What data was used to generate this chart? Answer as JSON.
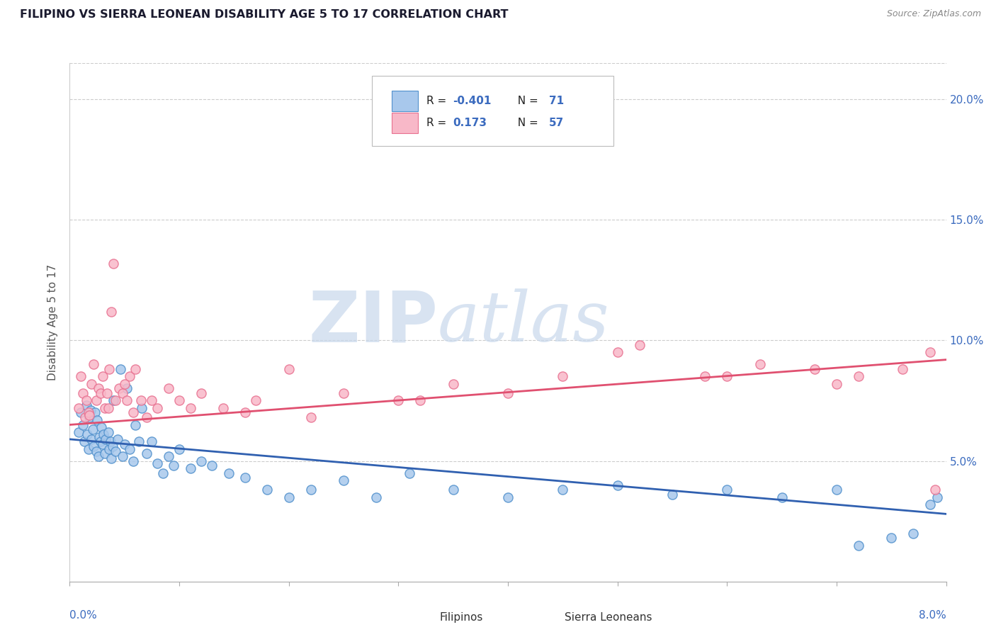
{
  "title": "FILIPINO VS SIERRA LEONEAN DISABILITY AGE 5 TO 17 CORRELATION CHART",
  "source": "Source: ZipAtlas.com",
  "ylabel": "Disability Age 5 to 17",
  "xlim": [
    0.0,
    8.0
  ],
  "ylim": [
    0.0,
    21.5
  ],
  "yticks": [
    0.0,
    5.0,
    10.0,
    15.0,
    20.0
  ],
  "ytick_labels": [
    "",
    "5.0%",
    "10.0%",
    "15.0%",
    "20.0%"
  ],
  "color_filipino_face": "#A8C8EC",
  "color_filipino_edge": "#5090CC",
  "color_sierraleonean_face": "#F8B8C8",
  "color_sierraleonean_edge": "#E87090",
  "color_line_filipino": "#3060B0",
  "color_line_sierraleonean": "#E05070",
  "axis_color": "#3B6BBF",
  "title_color": "#1A1A2E",
  "watermark_color": "#C8D8EC",
  "filipino_trend_x": [
    0.0,
    8.0
  ],
  "filipino_trend_y": [
    5.9,
    2.8
  ],
  "sl_trend_x": [
    0.0,
    8.0
  ],
  "sl_trend_y": [
    6.5,
    9.2
  ],
  "filipino_x": [
    0.08,
    0.1,
    0.12,
    0.13,
    0.15,
    0.16,
    0.17,
    0.18,
    0.19,
    0.2,
    0.21,
    0.22,
    0.23,
    0.24,
    0.25,
    0.26,
    0.27,
    0.28,
    0.29,
    0.3,
    0.31,
    0.32,
    0.33,
    0.35,
    0.36,
    0.37,
    0.38,
    0.39,
    0.4,
    0.42,
    0.44,
    0.46,
    0.48,
    0.5,
    0.52,
    0.55,
    0.58,
    0.6,
    0.63,
    0.66,
    0.7,
    0.75,
    0.8,
    0.85,
    0.9,
    0.95,
    1.0,
    1.1,
    1.2,
    1.3,
    1.45,
    1.6,
    1.8,
    2.0,
    2.2,
    2.5,
    2.8,
    3.1,
    3.5,
    4.0,
    4.5,
    5.0,
    5.5,
    6.0,
    6.5,
    7.0,
    7.2,
    7.5,
    7.7,
    7.85,
    7.92
  ],
  "filipino_y": [
    6.2,
    7.0,
    6.5,
    5.8,
    7.3,
    6.1,
    5.5,
    6.8,
    7.1,
    5.9,
    6.3,
    5.6,
    7.0,
    5.4,
    6.7,
    5.2,
    6.0,
    5.8,
    6.4,
    5.7,
    6.1,
    5.3,
    5.9,
    6.2,
    5.5,
    5.8,
    5.1,
    5.6,
    7.5,
    5.4,
    5.9,
    8.8,
    5.2,
    5.7,
    8.0,
    5.5,
    5.0,
    6.5,
    5.8,
    7.2,
    5.3,
    5.8,
    4.9,
    4.5,
    5.2,
    4.8,
    5.5,
    4.7,
    5.0,
    4.8,
    4.5,
    4.3,
    3.8,
    3.5,
    3.8,
    4.2,
    3.5,
    4.5,
    3.8,
    3.5,
    3.8,
    4.0,
    3.6,
    3.8,
    3.5,
    3.8,
    1.5,
    1.8,
    2.0,
    3.2,
    3.5
  ],
  "sl_x": [
    0.08,
    0.1,
    0.12,
    0.14,
    0.15,
    0.17,
    0.18,
    0.2,
    0.22,
    0.24,
    0.26,
    0.28,
    0.3,
    0.32,
    0.34,
    0.36,
    0.38,
    0.4,
    0.42,
    0.45,
    0.48,
    0.52,
    0.55,
    0.58,
    0.6,
    0.65,
    0.7,
    0.8,
    0.9,
    1.0,
    1.2,
    1.4,
    1.7,
    2.0,
    2.5,
    3.0,
    3.5,
    4.5,
    5.2,
    5.8,
    6.3,
    6.8,
    7.2,
    7.6,
    7.85,
    0.35,
    0.5,
    0.75,
    1.1,
    1.6,
    2.2,
    3.2,
    4.0,
    5.0,
    6.0,
    7.0,
    7.9
  ],
  "sl_y": [
    7.2,
    8.5,
    7.8,
    6.8,
    7.5,
    7.0,
    6.9,
    8.2,
    9.0,
    7.5,
    8.0,
    7.8,
    8.5,
    7.2,
    7.8,
    8.8,
    11.2,
    13.2,
    7.5,
    8.0,
    7.8,
    7.5,
    8.5,
    7.0,
    8.8,
    7.5,
    6.8,
    7.2,
    8.0,
    7.5,
    7.8,
    7.2,
    7.5,
    8.8,
    7.8,
    7.5,
    8.2,
    8.5,
    9.8,
    8.5,
    9.0,
    8.8,
    8.5,
    8.8,
    9.5,
    7.2,
    8.2,
    7.5,
    7.2,
    7.0,
    6.8,
    7.5,
    7.8,
    9.5,
    8.5,
    8.2,
    3.8
  ]
}
